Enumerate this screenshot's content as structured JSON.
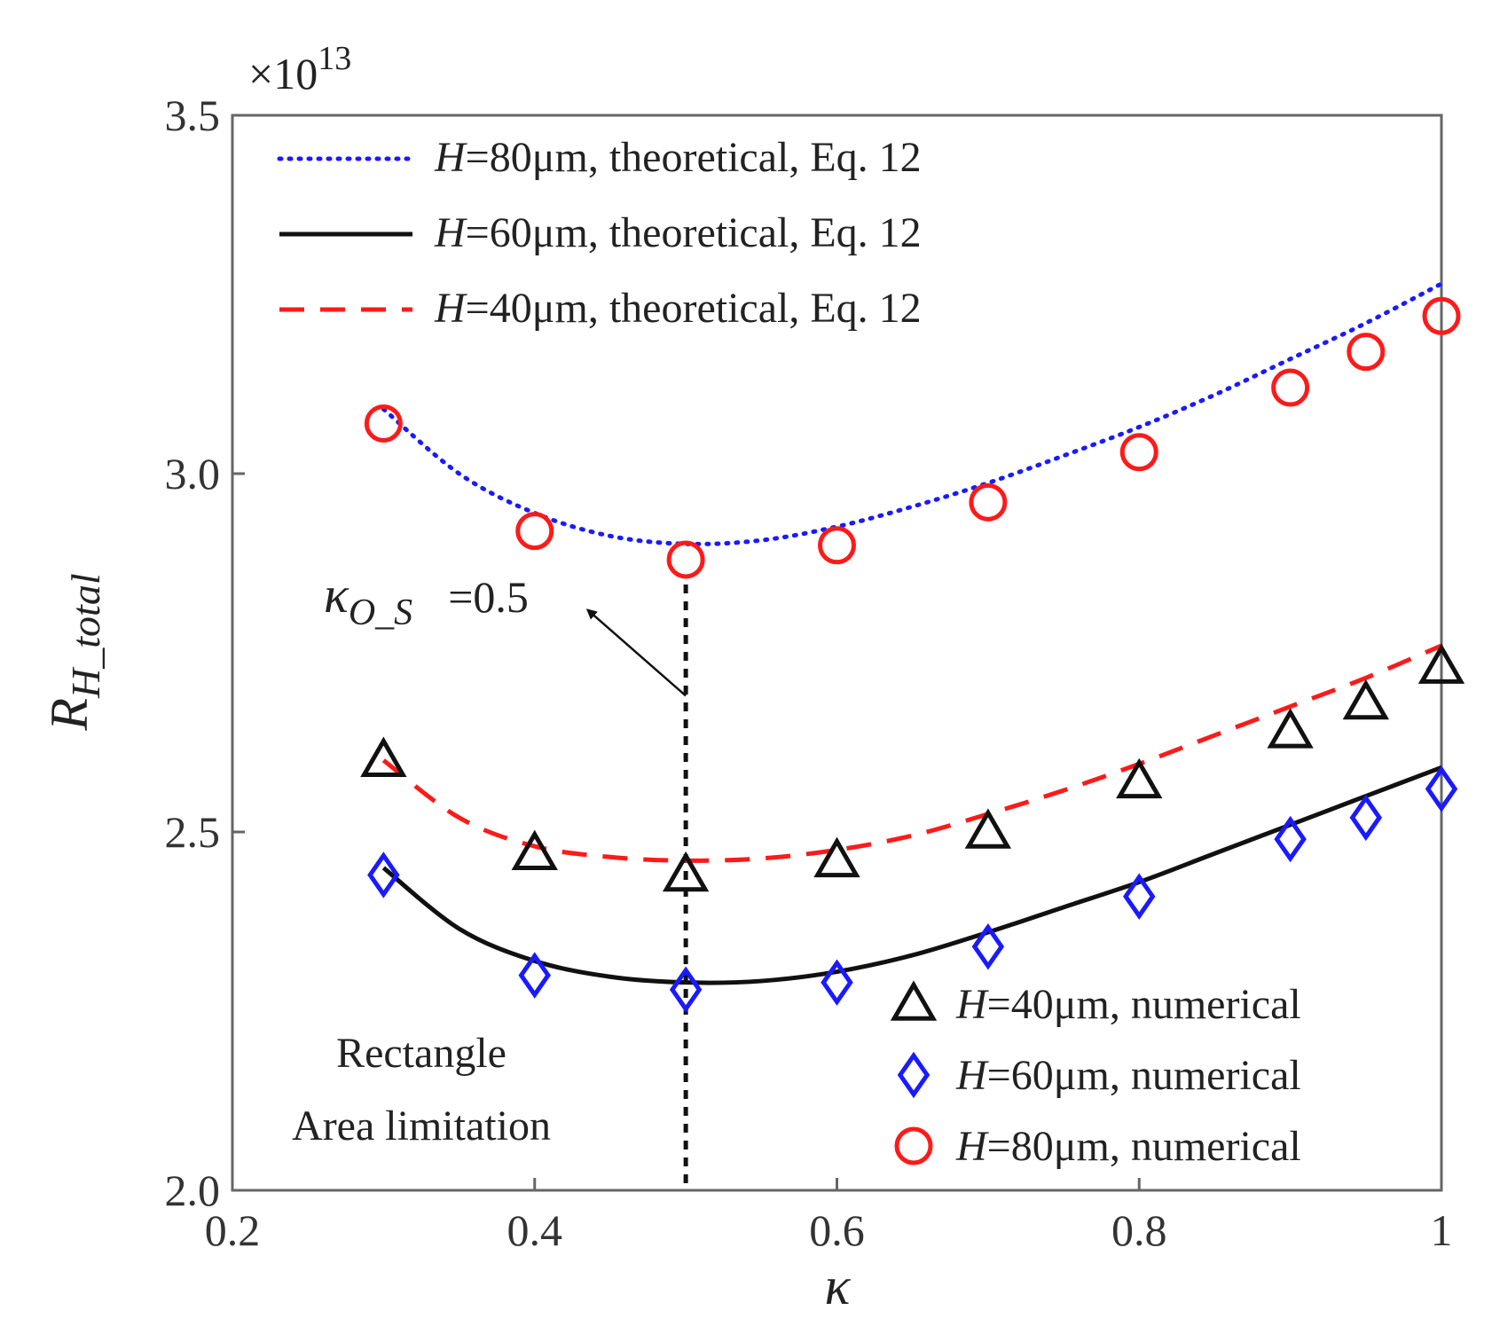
{
  "chart_data": {
    "type": "line",
    "xlabel": "κ",
    "ylabel": {
      "main": "R",
      "sub": "H_total"
    },
    "y_multiplier": {
      "base": "×10",
      "exponent": "13"
    },
    "xlim": [
      0.2,
      1.0
    ],
    "ylim": [
      2.0,
      3.5
    ],
    "xticks": [
      {
        "value": 0.2,
        "label": "0.2"
      },
      {
        "value": 0.4,
        "label": "0.4"
      },
      {
        "value": 0.6,
        "label": "0.6"
      },
      {
        "value": 0.8,
        "label": "0.8"
      },
      {
        "value": 1.0,
        "label": "1"
      }
    ],
    "yticks": [
      {
        "value": 2.0,
        "label": "2.0"
      },
      {
        "value": 2.5,
        "label": "2.5"
      },
      {
        "value": 3.0,
        "label": "3.0"
      },
      {
        "value": 3.5,
        "label": "3.5"
      }
    ],
    "grid": false,
    "legend_top_placement": "top-left",
    "legend_bottom_placement": "bottom-right",
    "theoretical": [
      {
        "name_italic": "H",
        "name_rest": "=80μm, theoretical, Eq. 12",
        "color": "#1a1aff",
        "style": "dotted",
        "x": [
          0.3,
          0.35,
          0.4,
          0.45,
          0.5,
          0.55,
          0.6,
          0.65,
          0.7,
          0.75,
          0.8,
          0.85,
          0.9,
          0.95,
          1.0
        ],
        "y": [
          3.09,
          3.0,
          2.945,
          2.913,
          2.902,
          2.907,
          2.926,
          2.954,
          2.987,
          3.025,
          3.065,
          3.11,
          3.16,
          3.21,
          3.265
        ]
      },
      {
        "name_italic": "H",
        "name_rest": "=60μm, theoretical, Eq. 12",
        "color": "#111111",
        "style": "solid",
        "x": [
          0.3,
          0.35,
          0.4,
          0.45,
          0.5,
          0.55,
          0.6,
          0.65,
          0.7,
          0.75,
          0.8,
          0.85,
          0.9,
          0.95,
          1.0
        ],
        "y": [
          2.45,
          2.365,
          2.32,
          2.298,
          2.29,
          2.292,
          2.305,
          2.328,
          2.36,
          2.395,
          2.43,
          2.47,
          2.51,
          2.55,
          2.59
        ]
      },
      {
        "name_italic": "H",
        "name_rest": "=40μm, theoretical, Eq. 12",
        "color": "#ff1a1a",
        "style": "dashed",
        "x": [
          0.3,
          0.35,
          0.4,
          0.45,
          0.5,
          0.55,
          0.6,
          0.65,
          0.7,
          0.75,
          0.8,
          0.85,
          0.9,
          0.95,
          1.0
        ],
        "y": [
          2.6,
          2.52,
          2.48,
          2.465,
          2.46,
          2.463,
          2.475,
          2.495,
          2.525,
          2.558,
          2.595,
          2.635,
          2.675,
          2.715,
          2.76
        ]
      }
    ],
    "numerical": [
      {
        "name_italic": "H",
        "name_rest": "=40μm, numerical",
        "marker": "triangle",
        "color": "#111111",
        "x": [
          0.3,
          0.4,
          0.5,
          0.6,
          0.7,
          0.8,
          0.9,
          0.95,
          1.0
        ],
        "y": [
          2.6,
          2.47,
          2.44,
          2.46,
          2.5,
          2.57,
          2.64,
          2.68,
          2.73
        ]
      },
      {
        "name_italic": "H",
        "name_rest": "=60μm, numerical",
        "marker": "diamond",
        "color": "#1a1aff",
        "x": [
          0.3,
          0.4,
          0.5,
          0.6,
          0.7,
          0.8,
          0.9,
          0.95,
          1.0
        ],
        "y": [
          2.44,
          2.3,
          2.28,
          2.29,
          2.34,
          2.41,
          2.49,
          2.52,
          2.56
        ]
      },
      {
        "name_italic": "H",
        "name_rest": "=80μm, numerical",
        "marker": "circle",
        "color": "#ff1a1a",
        "x": [
          0.3,
          0.4,
          0.5,
          0.6,
          0.7,
          0.8,
          0.9,
          0.95,
          1.0
        ],
        "y": [
          3.07,
          2.92,
          2.88,
          2.9,
          2.96,
          3.03,
          3.12,
          3.17,
          3.22
        ]
      }
    ],
    "vline": {
      "x": 0.5,
      "color": "#111111",
      "style": "dotted"
    },
    "annotations": {
      "kappa_label": {
        "symbol": "κ",
        "subscript": "O_S",
        "value": "=0.5"
      },
      "arrow": {
        "from": [
          0.5,
          2.69
        ],
        "to": [
          0.435,
          2.81
        ]
      },
      "region_text": [
        "Rectangle",
        "Area limitation"
      ]
    }
  }
}
